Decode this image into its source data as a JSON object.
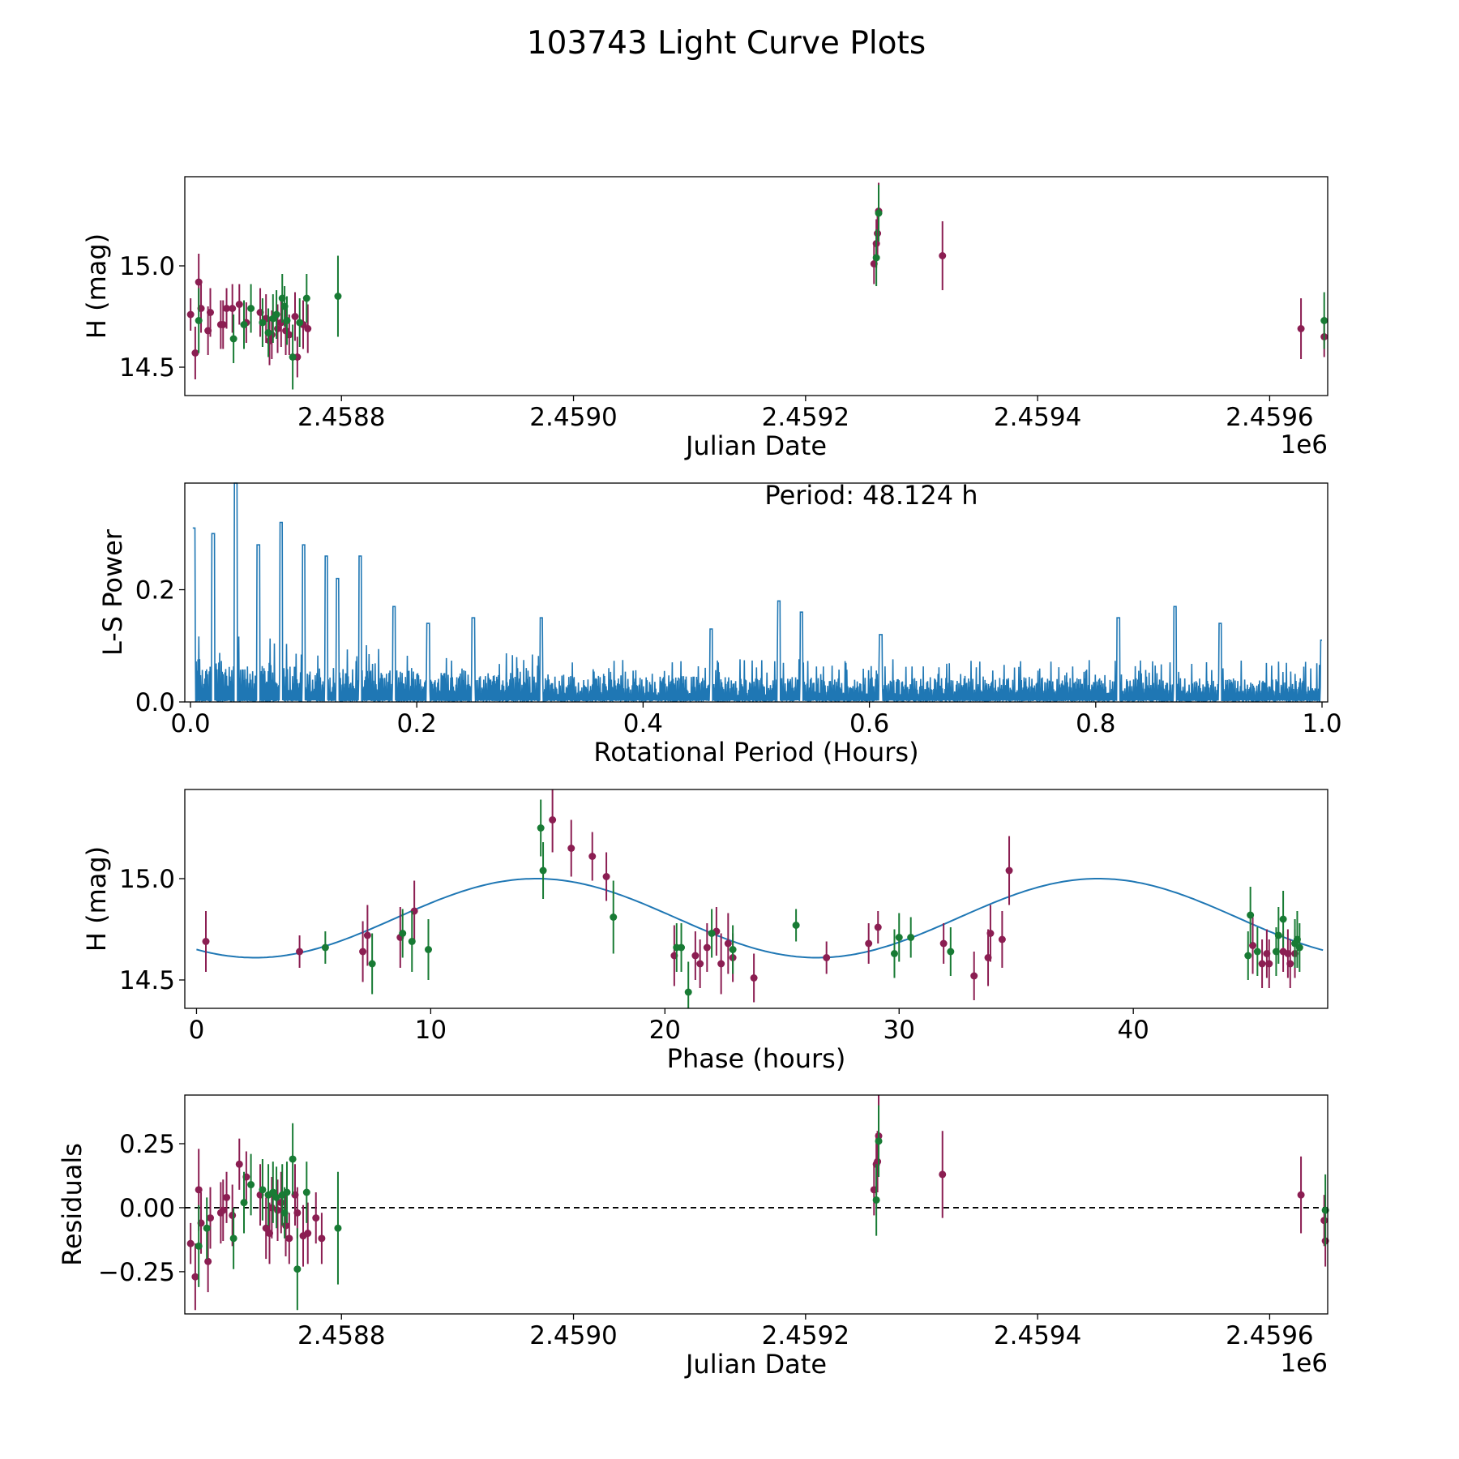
{
  "title": "103743 Light Curve Plots",
  "colors": {
    "band_a": "#8B1E52",
    "band_b": "#187B34",
    "curve": "#1F77B4",
    "axis": "#000000"
  },
  "chart_data": [
    {
      "id": "lightcurve",
      "type": "scatter",
      "xlabel": "Julian Date",
      "ylabel": "H (mag)",
      "offset_label": "1e6",
      "xlim": [
        2458665,
        2459650
      ],
      "ylim": [
        14.36,
        15.44
      ],
      "xticks": [
        2458800,
        2459000,
        2459200,
        2459400,
        2459600
      ],
      "xtick_labels": [
        "2.4588",
        "2.4590",
        "2.4592",
        "2.4594",
        "2.4596"
      ],
      "yticks": [
        14.5,
        15.0
      ],
      "ytick_labels": [
        "14.5",
        "15.0"
      ],
      "series": [
        {
          "name": "band-purple",
          "color": "#8B1E52",
          "points": [
            [
              2458670,
              14.76,
              0.08
            ],
            [
              2458674,
              14.57,
              0.13
            ],
            [
              2458677,
              14.92,
              0.14
            ],
            [
              2458679,
              14.79,
              0.12
            ],
            [
              2458685,
              14.68,
              0.12
            ],
            [
              2458687,
              14.77,
              0.12
            ],
            [
              2458696,
              14.71,
              0.12
            ],
            [
              2458698,
              14.71,
              0.12
            ],
            [
              2458701,
              14.79,
              0.1
            ],
            [
              2458706,
              14.79,
              0.12
            ],
            [
              2458712,
              14.81,
              0.1
            ],
            [
              2458718,
              14.72,
              0.1
            ],
            [
              2458730,
              14.77,
              0.12
            ],
            [
              2458735,
              14.74,
              0.12
            ],
            [
              2458738,
              14.63,
              0.12
            ],
            [
              2458740,
              14.66,
              0.12
            ],
            [
              2458745,
              14.69,
              0.12
            ],
            [
              2458748,
              14.72,
              0.12
            ],
            [
              2458752,
              14.68,
              0.12
            ],
            [
              2458755,
              14.66,
              0.1
            ],
            [
              2458760,
              14.75,
              0.12
            ],
            [
              2458762,
              14.55,
              0.1
            ],
            [
              2458767,
              14.71,
              0.12
            ],
            [
              2458771,
              14.69,
              0.12
            ],
            [
              2459259,
              15.01,
              0.1
            ],
            [
              2459261,
              15.11,
              0.12
            ],
            [
              2459262,
              15.16,
              0.12
            ],
            [
              2459263,
              15.27,
              0.14
            ],
            [
              2459318,
              15.05,
              0.17
            ],
            [
              2459627,
              14.69,
              0.15
            ],
            [
              2459647,
              14.65,
              0.1
            ]
          ]
        },
        {
          "name": "band-green",
          "color": "#187B34",
          "points": [
            [
              2458677,
              14.73,
              0.16
            ],
            [
              2458707,
              14.64,
              0.12
            ],
            [
              2458716,
              14.71,
              0.12
            ],
            [
              2458722,
              14.79,
              0.12
            ],
            [
              2458732,
              14.72,
              0.12
            ],
            [
              2458737,
              14.67,
              0.12
            ],
            [
              2458741,
              14.74,
              0.12
            ],
            [
              2458744,
              14.76,
              0.12
            ],
            [
              2458749,
              14.84,
              0.12
            ],
            [
              2458751,
              14.8,
              0.1
            ],
            [
              2458753,
              14.73,
              0.12
            ],
            [
              2458758,
              14.55,
              0.16
            ],
            [
              2458764,
              14.72,
              0.12
            ],
            [
              2458770,
              14.84,
              0.12
            ],
            [
              2458797,
              14.85,
              0.2
            ],
            [
              2459261,
              15.04,
              0.14
            ],
            [
              2459263,
              15.26,
              0.14
            ],
            [
              2459647,
              14.73,
              0.14
            ]
          ]
        }
      ]
    },
    {
      "id": "periodogram",
      "type": "line",
      "xlabel": "Rotational Period (Hours)",
      "ylabel": "L-S Power",
      "annotation": "Period: 48.124 h",
      "xlim": [
        -0.005,
        1.005
      ],
      "ylim": [
        0.0,
        0.39
      ],
      "xticks": [
        0.0,
        0.2,
        0.4,
        0.6,
        0.8,
        1.0
      ],
      "xtick_labels": [
        "0.0",
        "0.2",
        "0.4",
        "0.6",
        "0.8",
        "1.0"
      ],
      "yticks": [
        0.0,
        0.2
      ],
      "ytick_labels": [
        "0.0",
        "0.2"
      ],
      "peaks": [
        [
          0.002,
          0.25
        ],
        [
          0.003,
          0.31
        ],
        [
          0.02,
          0.3
        ],
        [
          0.04,
          0.39
        ],
        [
          0.06,
          0.28
        ],
        [
          0.08,
          0.32
        ],
        [
          0.1,
          0.28
        ],
        [
          0.12,
          0.26
        ],
        [
          0.13,
          0.22
        ],
        [
          0.15,
          0.26
        ],
        [
          0.18,
          0.17
        ],
        [
          0.21,
          0.14
        ],
        [
          0.25,
          0.15
        ],
        [
          0.31,
          0.15
        ],
        [
          0.46,
          0.13
        ],
        [
          0.52,
          0.18
        ],
        [
          0.54,
          0.16
        ],
        [
          0.61,
          0.12
        ],
        [
          0.82,
          0.15
        ],
        [
          0.87,
          0.17
        ],
        [
          0.91,
          0.14
        ],
        [
          1.0,
          0.11
        ]
      ]
    },
    {
      "id": "phased",
      "type": "scatter",
      "xlabel": "Phase (hours)",
      "ylabel": "H (mag)",
      "xlim": [
        -0.5,
        48.3
      ],
      "ylim": [
        14.36,
        15.44
      ],
      "xticks": [
        0,
        10,
        20,
        30,
        40
      ],
      "xtick_labels": [
        "0",
        "10",
        "20",
        "30",
        "40"
      ],
      "yticks": [
        14.5,
        15.0
      ],
      "ytick_labels": [
        "14.5",
        "15.0"
      ],
      "model": {
        "mean": 14.805,
        "amplitude": 0.195,
        "period": 24.0,
        "peak_phase": 14.5,
        "x_start": 0.0,
        "x_end": 48.1
      },
      "series": [
        {
          "name": "band-purple",
          "color": "#8B1E52",
          "points": [
            [
              0.4,
              14.69,
              0.15
            ],
            [
              4.4,
              14.64,
              0.08
            ],
            [
              7.1,
              14.64,
              0.15
            ],
            [
              7.3,
              14.72,
              0.15
            ],
            [
              8.7,
              14.71,
              0.15
            ],
            [
              9.3,
              14.84,
              0.15
            ],
            [
              15.2,
              15.29,
              0.16
            ],
            [
              16.0,
              15.15,
              0.14
            ],
            [
              16.9,
              15.11,
              0.12
            ],
            [
              17.5,
              15.01,
              0.12
            ],
            [
              20.4,
              14.62,
              0.15
            ],
            [
              21.3,
              14.62,
              0.12
            ],
            [
              21.5,
              14.58,
              0.12
            ],
            [
              21.8,
              14.66,
              0.12
            ],
            [
              22.2,
              14.74,
              0.12
            ],
            [
              22.4,
              14.58,
              0.15
            ],
            [
              22.7,
              14.68,
              0.15
            ],
            [
              22.9,
              14.61,
              0.12
            ],
            [
              23.8,
              14.51,
              0.12
            ],
            [
              26.9,
              14.61,
              0.08
            ],
            [
              28.7,
              14.68,
              0.1
            ],
            [
              29.1,
              14.76,
              0.08
            ],
            [
              31.9,
              14.68,
              0.1
            ],
            [
              33.2,
              14.52,
              0.12
            ],
            [
              33.8,
              14.61,
              0.14
            ],
            [
              33.9,
              14.73,
              0.14
            ],
            [
              34.4,
              14.7,
              0.14
            ],
            [
              34.7,
              15.04,
              0.17
            ],
            [
              45.1,
              14.67,
              0.14
            ],
            [
              45.5,
              14.58,
              0.12
            ],
            [
              45.7,
              14.63,
              0.12
            ],
            [
              45.8,
              14.58,
              0.12
            ],
            [
              46.4,
              14.64,
              0.1
            ],
            [
              46.6,
              14.63,
              0.12
            ],
            [
              46.7,
              14.58,
              0.12
            ],
            [
              46.9,
              14.63,
              0.12
            ]
          ]
        },
        {
          "name": "band-green",
          "color": "#187B34",
          "points": [
            [
              5.5,
              14.66,
              0.08
            ],
            [
              7.5,
              14.58,
              0.15
            ],
            [
              8.8,
              14.73,
              0.12
            ],
            [
              9.2,
              14.69,
              0.15
            ],
            [
              9.9,
              14.65,
              0.15
            ],
            [
              14.7,
              15.25,
              0.14
            ],
            [
              14.8,
              15.04,
              0.14
            ],
            [
              17.8,
              14.81,
              0.18
            ],
            [
              20.5,
              14.66,
              0.12
            ],
            [
              20.7,
              14.66,
              0.12
            ],
            [
              21.0,
              14.44,
              0.15
            ],
            [
              22.0,
              14.73,
              0.12
            ],
            [
              22.9,
              14.65,
              0.12
            ],
            [
              25.6,
              14.77,
              0.08
            ],
            [
              29.8,
              14.63,
              0.12
            ],
            [
              30.0,
              14.71,
              0.12
            ],
            [
              30.5,
              14.71,
              0.1
            ],
            [
              32.2,
              14.64,
              0.12
            ],
            [
              44.9,
              14.62,
              0.12
            ],
            [
              45.0,
              14.82,
              0.14
            ],
            [
              45.3,
              14.64,
              0.12
            ],
            [
              46.1,
              14.64,
              0.12
            ],
            [
              46.2,
              14.72,
              0.14
            ],
            [
              46.4,
              14.8,
              0.14
            ],
            [
              46.9,
              14.68,
              0.12
            ],
            [
              47.0,
              14.7,
              0.14
            ],
            [
              47.1,
              14.66,
              0.12
            ]
          ]
        }
      ]
    },
    {
      "id": "residuals",
      "type": "scatter",
      "xlabel": "Julian Date",
      "ylabel": "Residuals",
      "offset_label": "1e6",
      "xlim": [
        2458665,
        2459650
      ],
      "ylim": [
        -0.415,
        0.44
      ],
      "xticks": [
        2458800,
        2459000,
        2459200,
        2459400,
        2459600
      ],
      "xtick_labels": [
        "2.4588",
        "2.4590",
        "2.4592",
        "2.4594",
        "2.4596"
      ],
      "yticks": [
        0.25,
        0.0,
        -0.25
      ],
      "ytick_labels": [
        "0.25",
        "0.00",
        "−0.25"
      ],
      "zero_line": 0.0,
      "series": [
        {
          "name": "band-purple",
          "color": "#8B1E52",
          "points": [
            [
              2458670,
              -0.14,
              0.08
            ],
            [
              2458674,
              -0.27,
              0.13
            ],
            [
              2458677,
              0.07,
              0.16
            ],
            [
              2458679,
              -0.06,
              0.12
            ],
            [
              2458685,
              -0.21,
              0.12
            ],
            [
              2458687,
              -0.04,
              0.12
            ],
            [
              2458696,
              -0.02,
              0.12
            ],
            [
              2458698,
              -0.01,
              0.12
            ],
            [
              2458701,
              0.04,
              0.1
            ],
            [
              2458706,
              -0.03,
              0.12
            ],
            [
              2458712,
              0.17,
              0.1
            ],
            [
              2458718,
              0.12,
              0.1
            ],
            [
              2458730,
              0.05,
              0.12
            ],
            [
              2458735,
              -0.08,
              0.12
            ],
            [
              2458738,
              -0.1,
              0.12
            ],
            [
              2458740,
              0.0,
              0.12
            ],
            [
              2458745,
              -0.01,
              0.12
            ],
            [
              2458748,
              0.02,
              0.12
            ],
            [
              2458752,
              -0.07,
              0.12
            ],
            [
              2458755,
              -0.12,
              0.1
            ],
            [
              2458760,
              0.05,
              0.12
            ],
            [
              2458762,
              -0.02,
              0.1
            ],
            [
              2458767,
              -0.11,
              0.12
            ],
            [
              2458771,
              -0.1,
              0.12
            ],
            [
              2458778,
              -0.04,
              0.1
            ],
            [
              2458783,
              -0.12,
              0.1
            ],
            [
              2459259,
              0.07,
              0.1
            ],
            [
              2459261,
              0.17,
              0.12
            ],
            [
              2459262,
              0.18,
              0.12
            ],
            [
              2459263,
              0.28,
              0.16
            ],
            [
              2459318,
              0.13,
              0.17
            ],
            [
              2459627,
              0.05,
              0.15
            ],
            [
              2459647,
              -0.05,
              0.1
            ],
            [
              2459648,
              -0.13,
              0.1
            ]
          ]
        },
        {
          "name": "band-green",
          "color": "#187B34",
          "points": [
            [
              2458677,
              -0.15,
              0.16
            ],
            [
              2458684,
              -0.08,
              0.12
            ],
            [
              2458707,
              -0.12,
              0.12
            ],
            [
              2458716,
              0.02,
              0.12
            ],
            [
              2458722,
              0.09,
              0.12
            ],
            [
              2458732,
              0.07,
              0.12
            ],
            [
              2458737,
              0.05,
              0.12
            ],
            [
              2458741,
              0.06,
              0.12
            ],
            [
              2458744,
              0.04,
              0.12
            ],
            [
              2458749,
              0.05,
              0.12
            ],
            [
              2458751,
              -0.02,
              0.1
            ],
            [
              2458753,
              0.06,
              0.12
            ],
            [
              2458758,
              0.19,
              0.14
            ],
            [
              2458762,
              -0.24,
              0.16
            ],
            [
              2458770,
              0.06,
              0.12
            ],
            [
              2458797,
              -0.08,
              0.22
            ],
            [
              2459261,
              0.03,
              0.14
            ],
            [
              2459263,
              0.26,
              0.14
            ],
            [
              2459648,
              -0.01,
              0.14
            ]
          ]
        }
      ]
    }
  ]
}
